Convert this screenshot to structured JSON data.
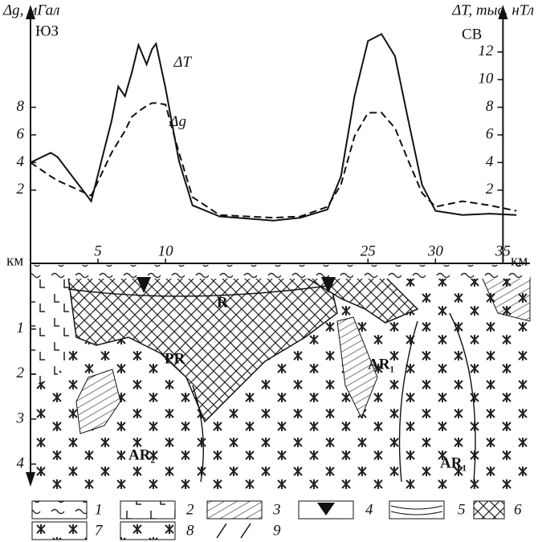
{
  "chart_data": [
    {
      "type": "line",
      "y_label": "Δg, мГал",
      "y2_label": "ΔT, тыс. нТл",
      "left_direction": "ЮЗ",
      "right_direction": "СВ",
      "x_label": "км",
      "x": [
        0,
        1.5,
        2,
        4.5,
        6,
        6.5,
        7,
        7.5,
        8,
        8.6,
        9,
        9.3,
        10,
        11,
        12,
        14,
        18,
        20,
        22,
        23,
        24,
        25,
        26,
        27,
        28,
        29,
        30,
        32,
        34,
        36
      ],
      "xlim": [
        0,
        37
      ],
      "xticks": [
        5,
        10,
        25,
        30,
        35
      ],
      "ylim": [
        -3.3,
        14.6
      ],
      "yticks": [
        2,
        4,
        6,
        8
      ],
      "y2lim": [
        -3.3,
        14.6
      ],
      "y2ticks": [
        2,
        4,
        6,
        8,
        10,
        12
      ],
      "series": [
        {
          "name": "ΔT",
          "axis": "y2",
          "color": "#111",
          "dashed": false,
          "values": [
            4,
            4.7,
            4.4,
            1.2,
            7,
            9.5,
            8.8,
            10.5,
            12.5,
            11.1,
            12.2,
            12.6,
            9.4,
            4.1,
            0.9,
            0.1,
            -0.2,
            0,
            0.6,
            3,
            8.8,
            12.8,
            13.3,
            11.7,
            7,
            2.4,
            0.5,
            0.2,
            0.3,
            0.2
          ]
        },
        {
          "name": "Δg",
          "color": "#111",
          "dashed": true,
          "values": [
            4,
            3,
            2.7,
            1.6,
            4.7,
            5.5,
            6.3,
            7.3,
            7.7,
            8.1,
            8.3,
            8.3,
            8.2,
            4.7,
            1.5,
            0.2,
            0,
            0.1,
            0.8,
            2.4,
            5.9,
            7.6,
            7.6,
            6.5,
            4.1,
            1.8,
            0.8,
            1.2,
            0.9,
            0.5
          ]
        }
      ]
    },
    {
      "type": "section",
      "ylim": [
        -0.46,
        4.5
      ],
      "yticks": [
        1,
        2,
        3,
        4
      ],
      "labels": [
        "R",
        "PR",
        "AR₂",
        "AR₁",
        "AR₁"
      ],
      "legend": [
        "1",
        "2",
        "3",
        "4",
        "5",
        "6",
        "7",
        "8",
        "9"
      ]
    }
  ]
}
